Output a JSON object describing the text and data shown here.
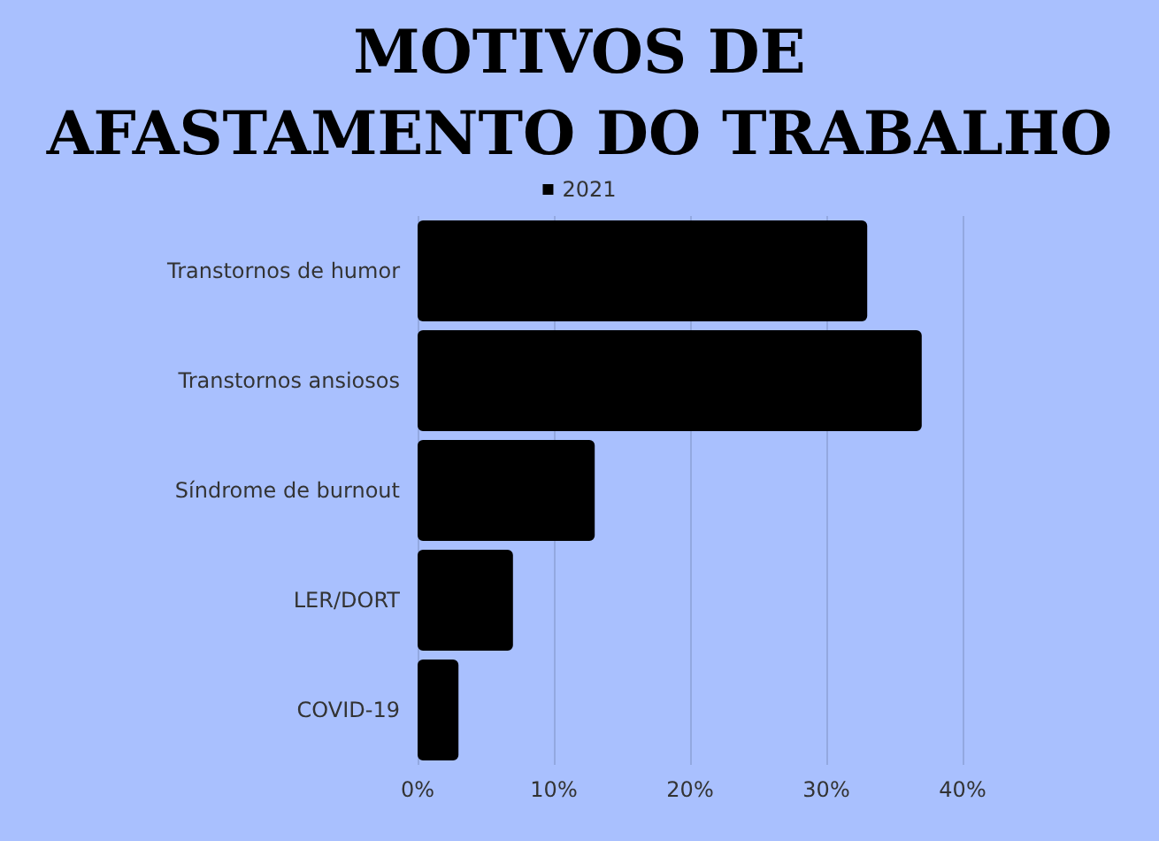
{
  "chart_data": {
    "type": "bar",
    "orientation": "horizontal",
    "title": "MOTIVOS DE\nAFASTAMENTO DO TRABALHO",
    "categories": [
      "Transtornos de humor",
      "Transtornos ansiosos",
      "Síndrome de burnout",
      "LER/DORT",
      "COVID-19"
    ],
    "series": [
      {
        "name": "2021",
        "color": "#000000",
        "values": [
          33,
          37,
          13,
          7,
          3
        ]
      }
    ],
    "xlim": [
      0,
      40
    ],
    "xticks": [
      {
        "value": 0,
        "label": "0%"
      },
      {
        "value": 10,
        "label": "10%"
      },
      {
        "value": 20,
        "label": "20%"
      },
      {
        "value": 30,
        "label": "30%"
      },
      {
        "value": 40,
        "label": "40%"
      }
    ],
    "grid": "x",
    "legend": "top"
  }
}
